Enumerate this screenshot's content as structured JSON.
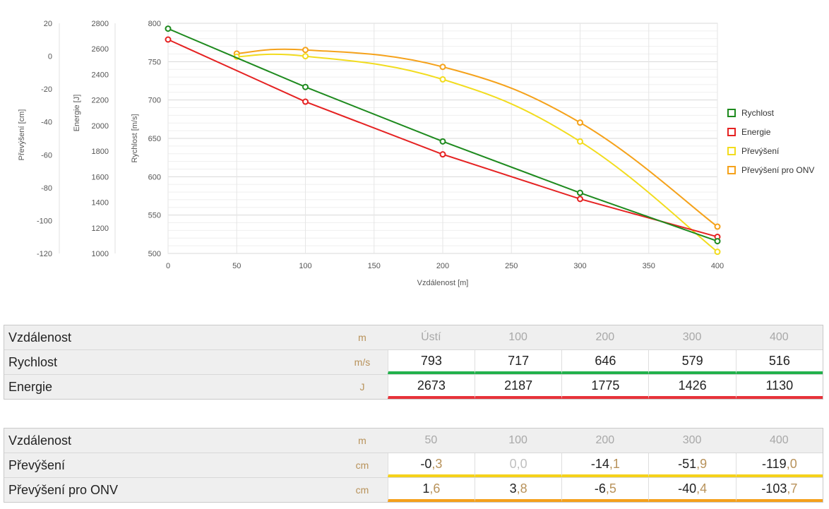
{
  "chart_data": {
    "type": "line",
    "xlabel": "Vzdálenost [m]",
    "xlim": [
      0,
      400
    ],
    "xticks": [
      0,
      50,
      100,
      150,
      200,
      250,
      300,
      350,
      400
    ],
    "axes": [
      {
        "label": "Převýšení [cm]",
        "ylim": [
          -120,
          20
        ],
        "ticks": [
          20,
          0,
          -20,
          -40,
          -60,
          -80,
          -100,
          -120
        ]
      },
      {
        "label": "Energie [J]",
        "ylim": [
          1000,
          2800
        ],
        "ticks": [
          2800,
          2600,
          2400,
          2200,
          2000,
          1800,
          1600,
          1400,
          1200,
          1000
        ]
      },
      {
        "label": "Rychlost [m/s]",
        "ylim": [
          500,
          800
        ],
        "ticks": [
          800,
          750,
          700,
          650,
          600,
          550,
          500
        ],
        "grid": true
      }
    ],
    "series": [
      {
        "name": "Rychlost",
        "axis": "Rychlost [m/s]",
        "color": "#1e8a1e",
        "x": [
          0,
          100,
          200,
          300,
          400
        ],
        "values": [
          793,
          717,
          646,
          579,
          516
        ]
      },
      {
        "name": "Energie",
        "axis": "Energie [J]",
        "color": "#e52222",
        "x": [
          0,
          100,
          200,
          300,
          400
        ],
        "values": [
          2673,
          2187,
          1775,
          1426,
          1130
        ]
      },
      {
        "name": "Převýšení",
        "axis": "Převýšení [cm]",
        "color": "#f2dc1e",
        "x": [
          50,
          100,
          200,
          300,
          400
        ],
        "values": [
          -0.3,
          0.0,
          -14.1,
          -51.9,
          -119.0
        ]
      },
      {
        "name": "Převýšení pro ONV",
        "axis": "Převýšení [cm]",
        "color": "#f5a21b",
        "x": [
          50,
          100,
          200,
          300,
          400
        ],
        "values": [
          1.6,
          3.8,
          -6.5,
          -40.4,
          -103.7
        ]
      }
    ],
    "legend_position": "right"
  },
  "table1": {
    "header": {
      "label": "Vzdálenost",
      "unit": "m",
      "cols": [
        "Ústí",
        "100",
        "200",
        "300",
        "400"
      ]
    },
    "rows": [
      {
        "label": "Rychlost",
        "unit": "m/s",
        "values": [
          "793",
          "717",
          "646",
          "579",
          "516"
        ],
        "bar_color": "#22b14c"
      },
      {
        "label": "Energie",
        "unit": "J",
        "values": [
          "2673",
          "2187",
          "1775",
          "1426",
          "1130"
        ],
        "bar_color": "#e8333a"
      }
    ]
  },
  "table2": {
    "header": {
      "label": "Vzdálenost",
      "unit": "m",
      "cols": [
        "50",
        "100",
        "200",
        "300",
        "400"
      ]
    },
    "rows": [
      {
        "label": "Převýšení",
        "unit": "cm",
        "values": [
          [
            "-0",
            ",3"
          ],
          [
            "0",
            ",0"
          ],
          [
            "-14",
            ",1"
          ],
          [
            "-51",
            ",9"
          ],
          [
            "-119",
            ",0"
          ]
        ],
        "muted": [
          false,
          true,
          false,
          false,
          false
        ],
        "bar_color": "#f5d21b"
      },
      {
        "label": "Převýšení pro ONV",
        "unit": "cm",
        "values": [
          [
            "1",
            ",6"
          ],
          [
            "3",
            ",8"
          ],
          [
            "-6",
            ",5"
          ],
          [
            "-40",
            ",4"
          ],
          [
            "-103",
            ",7"
          ]
        ],
        "muted": [
          false,
          false,
          false,
          false,
          false
        ],
        "bar_color": "#f5a01b"
      }
    ]
  }
}
